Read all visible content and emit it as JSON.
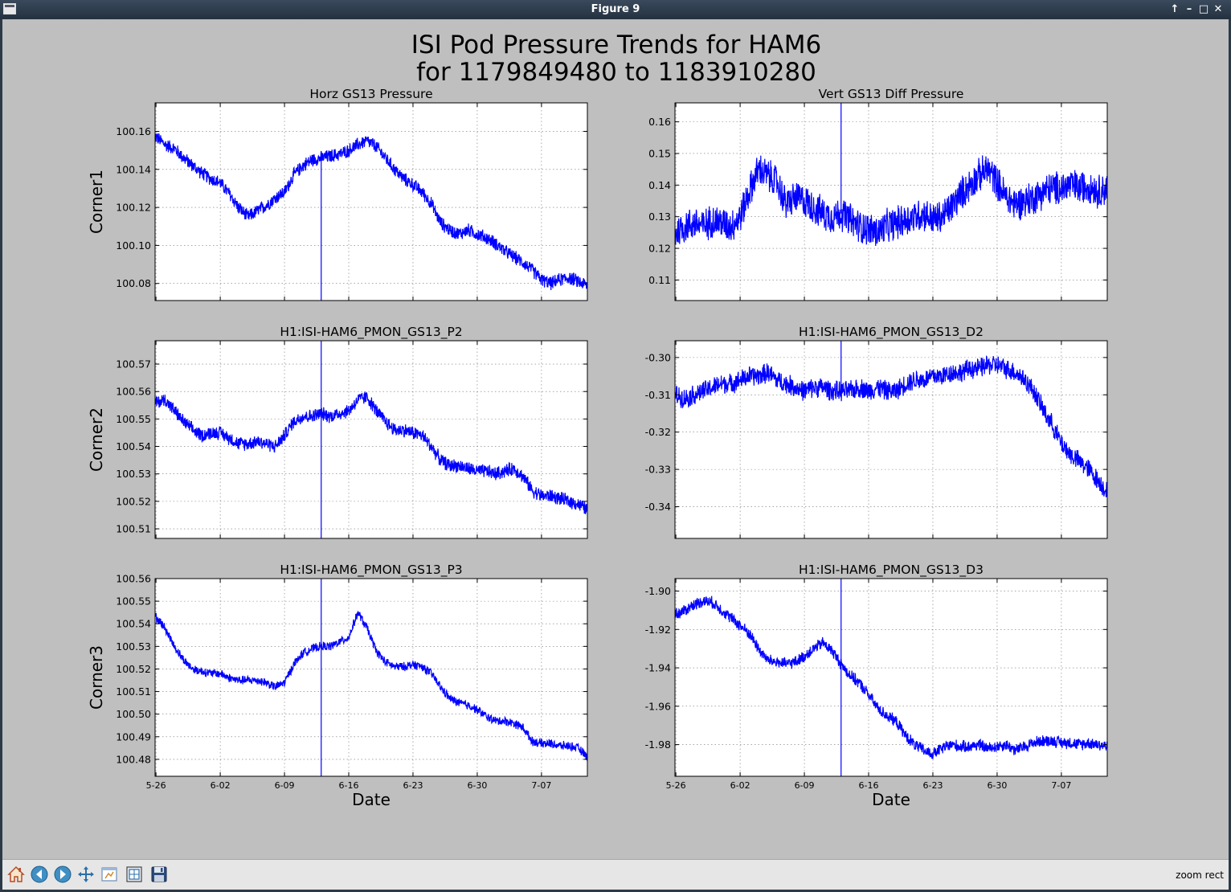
{
  "window": {
    "title": "Figure 9",
    "controls": [
      "↑",
      "–",
      "□",
      "✕"
    ]
  },
  "toolbar": {
    "tools": [
      {
        "name": "home-icon"
      },
      {
        "name": "back-arrow-icon"
      },
      {
        "name": "forward-arrow-icon"
      },
      {
        "name": "pan-icon"
      },
      {
        "name": "zoom-icon"
      },
      {
        "name": "subplots-icon"
      },
      {
        "name": "save-icon"
      }
    ],
    "status": "zoom rect"
  },
  "chart_data": {
    "type": "line",
    "title": "ISI Pod Pressure Trends for HAM6\nfor 1179849480 to 1183910280",
    "line_color": "#0000ff",
    "grid": true,
    "x_tick_labels": [
      "5-26",
      "6-02",
      "6-09",
      "6-16",
      "6-23",
      "6-30",
      "7-07"
    ],
    "x_tick_days": [
      0,
      7,
      14,
      21,
      28,
      35,
      42
    ],
    "x_range_days": [
      -0.1,
      47.0
    ],
    "x_label": "Date",
    "panels": [
      {
        "id": "p1",
        "title": "Horz GS13 Pressure",
        "ylabel": "Corner1",
        "ylim": [
          100.071,
          100.175
        ],
        "yticks": [
          100.08,
          100.1,
          100.12,
          100.14,
          100.16
        ],
        "ytick_labels": [
          "100.08",
          "100.10",
          "100.12",
          "100.14",
          "100.16"
        ],
        "noise": 0.004,
        "spike_day": 18.0,
        "spike_to": "bottom",
        "x": [
          0,
          1,
          2,
          3,
          4,
          5,
          6,
          7,
          8,
          9,
          10,
          11,
          12,
          13,
          14,
          15,
          16,
          17,
          18,
          19,
          20,
          21,
          22,
          23,
          24,
          25,
          26,
          27,
          28,
          29,
          30,
          31,
          32,
          33,
          34,
          35,
          36,
          37,
          38,
          39,
          40,
          41,
          42,
          43,
          44,
          45,
          46,
          47
        ],
        "y": [
          100.157,
          100.153,
          100.151,
          100.146,
          100.142,
          100.138,
          100.135,
          100.133,
          100.127,
          100.12,
          100.115,
          100.118,
          100.121,
          100.125,
          100.128,
          100.137,
          100.142,
          100.145,
          100.146,
          100.147,
          100.148,
          100.15,
          100.153,
          100.155,
          100.152,
          100.146,
          100.14,
          100.135,
          100.132,
          100.128,
          100.122,
          100.112,
          100.108,
          100.106,
          100.108,
          100.106,
          100.104,
          100.101,
          100.097,
          100.094,
          100.091,
          100.087,
          100.082,
          100.08,
          100.082,
          100.083,
          100.081,
          100.079
        ]
      },
      {
        "id": "p2",
        "title": "Vert GS13 Diff Pressure",
        "ylabel": "",
        "ylim": [
          0.1035,
          0.166
        ],
        "yticks": [
          0.11,
          0.12,
          0.13,
          0.14,
          0.15,
          0.16
        ],
        "ytick_labels": [
          "0.11",
          "0.12",
          "0.13",
          "0.14",
          "0.15",
          "0.16"
        ],
        "noise": 0.006,
        "spike_day": 18.0,
        "spike_to": "top",
        "x": [
          0,
          1,
          2,
          3,
          4,
          5,
          6,
          7,
          8,
          9,
          10,
          11,
          12,
          13,
          14,
          15,
          16,
          17,
          18,
          19,
          20,
          21,
          22,
          23,
          24,
          25,
          26,
          27,
          28,
          29,
          30,
          31,
          32,
          33,
          34,
          35,
          36,
          37,
          38,
          39,
          40,
          41,
          42,
          43,
          44,
          45,
          46,
          47
        ],
        "y": [
          0.125,
          0.127,
          0.128,
          0.127,
          0.129,
          0.128,
          0.127,
          0.13,
          0.138,
          0.145,
          0.143,
          0.141,
          0.134,
          0.136,
          0.135,
          0.133,
          0.131,
          0.13,
          0.131,
          0.129,
          0.127,
          0.126,
          0.125,
          0.127,
          0.128,
          0.129,
          0.13,
          0.131,
          0.129,
          0.13,
          0.133,
          0.137,
          0.14,
          0.143,
          0.145,
          0.141,
          0.136,
          0.134,
          0.135,
          0.136,
          0.138,
          0.139,
          0.139,
          0.14,
          0.139,
          0.14,
          0.138,
          0.139
        ]
      },
      {
        "id": "p3",
        "title": "H1:ISI-HAM6_PMON_GS13_P2",
        "ylabel": "Corner2",
        "ylim": [
          100.5065,
          100.5785
        ],
        "yticks": [
          100.51,
          100.52,
          100.53,
          100.54,
          100.55,
          100.56,
          100.57
        ],
        "ytick_labels": [
          "100.51",
          "100.52",
          "100.53",
          "100.54",
          "100.55",
          "100.56",
          "100.57"
        ],
        "noise": 0.0028,
        "spike_day": 18.0,
        "spike_to": "both",
        "x": [
          0,
          1,
          2,
          3,
          4,
          5,
          6,
          7,
          8,
          9,
          10,
          11,
          12,
          13,
          14,
          15,
          16,
          17,
          18,
          19,
          20,
          21,
          22,
          23,
          24,
          25,
          26,
          27,
          28,
          29,
          30,
          31,
          32,
          33,
          34,
          35,
          36,
          37,
          38,
          39,
          40,
          41,
          42,
          43,
          44,
          45,
          46,
          47
        ],
        "y": [
          100.556,
          100.557,
          100.553,
          100.549,
          100.546,
          100.544,
          100.545,
          100.545,
          100.543,
          100.541,
          100.541,
          100.542,
          100.541,
          100.54,
          100.544,
          100.549,
          100.551,
          100.551,
          100.552,
          100.551,
          100.552,
          100.553,
          100.557,
          100.558,
          100.553,
          100.549,
          100.546,
          100.546,
          100.545,
          100.544,
          100.54,
          100.535,
          100.533,
          100.533,
          100.532,
          100.531,
          100.531,
          100.53,
          100.531,
          100.532,
          100.529,
          100.524,
          100.522,
          100.522,
          100.521,
          100.52,
          100.519,
          100.517
        ]
      },
      {
        "id": "p4",
        "title": "H1:ISI-HAM6_PMON_GS13_D2",
        "ylabel": "",
        "ylim": [
          -0.3485,
          -0.2955
        ],
        "yticks": [
          -0.34,
          -0.33,
          -0.32,
          -0.31,
          -0.3
        ],
        "ytick_labels": [
          "-0.34",
          "-0.33",
          "-0.32",
          "-0.31",
          "-0.30"
        ],
        "noise": 0.003,
        "spike_day": 18.0,
        "spike_to": "top",
        "x": [
          0,
          1,
          2,
          3,
          4,
          5,
          6,
          7,
          8,
          9,
          10,
          11,
          12,
          13,
          14,
          15,
          16,
          17,
          18,
          19,
          20,
          21,
          22,
          23,
          24,
          25,
          26,
          27,
          28,
          29,
          30,
          31,
          32,
          33,
          34,
          35,
          36,
          37,
          38,
          39,
          40,
          41,
          42,
          43,
          44,
          45,
          46,
          47
        ],
        "y": [
          -0.31,
          -0.311,
          -0.31,
          -0.309,
          -0.308,
          -0.307,
          -0.307,
          -0.306,
          -0.305,
          -0.305,
          -0.304,
          -0.306,
          -0.307,
          -0.308,
          -0.309,
          -0.308,
          -0.308,
          -0.309,
          -0.309,
          -0.309,
          -0.308,
          -0.309,
          -0.308,
          -0.309,
          -0.309,
          -0.307,
          -0.306,
          -0.306,
          -0.305,
          -0.305,
          -0.304,
          -0.304,
          -0.303,
          -0.303,
          -0.302,
          -0.302,
          -0.303,
          -0.304,
          -0.306,
          -0.309,
          -0.314,
          -0.318,
          -0.323,
          -0.326,
          -0.328,
          -0.33,
          -0.333,
          -0.336
        ]
      },
      {
        "id": "p5",
        "title": "H1:ISI-HAM6_PMON_GS13_P3",
        "ylabel": "Corner3",
        "ylim": [
          100.4725,
          100.56
        ],
        "yticks": [
          100.48,
          100.49,
          100.5,
          100.51,
          100.52,
          100.53,
          100.54,
          100.55,
          100.56
        ],
        "ytick_labels": [
          "100.48",
          "100.49",
          "100.50",
          "100.51",
          "100.52",
          "100.53",
          "100.54",
          "100.55",
          "100.56"
        ],
        "noise": 0.0022,
        "spike_day": 18.0,
        "spike_to": "both",
        "x": [
          0,
          1,
          2,
          3,
          4,
          5,
          6,
          7,
          8,
          9,
          10,
          11,
          12,
          13,
          14,
          15,
          16,
          17,
          18,
          19,
          20,
          21,
          22,
          23,
          24,
          25,
          26,
          27,
          28,
          29,
          30,
          31,
          32,
          33,
          34,
          35,
          36,
          37,
          38,
          39,
          40,
          41,
          42,
          43,
          44,
          45,
          46,
          47
        ],
        "y": [
          100.543,
          100.538,
          100.53,
          100.524,
          100.52,
          100.519,
          100.518,
          100.518,
          100.516,
          100.515,
          100.515,
          100.515,
          100.514,
          100.512,
          100.514,
          100.522,
          100.527,
          100.529,
          100.53,
          100.53,
          100.532,
          100.534,
          100.545,
          100.538,
          100.528,
          100.523,
          100.521,
          100.521,
          100.522,
          100.521,
          100.518,
          100.512,
          100.507,
          100.505,
          100.504,
          100.502,
          100.499,
          100.497,
          100.497,
          100.496,
          100.494,
          100.488,
          100.487,
          100.487,
          100.486,
          100.486,
          100.485,
          100.481
        ]
      },
      {
        "id": "p6",
        "title": "H1:ISI-HAM6_PMON_GS13_D3",
        "ylabel": "",
        "ylim": [
          -1.9965,
          -1.8935
        ],
        "yticks": [
          -1.98,
          -1.96,
          -1.94,
          -1.92,
          -1.9
        ],
        "ytick_labels": [
          "-1.98",
          "-1.96",
          "-1.94",
          "-1.92",
          "-1.90"
        ],
        "noise": 0.0035,
        "spike_day": 18.0,
        "spike_to": "both",
        "x": [
          0,
          1,
          2,
          3,
          4,
          5,
          6,
          7,
          8,
          9,
          10,
          11,
          12,
          13,
          14,
          15,
          16,
          17,
          18,
          19,
          20,
          21,
          22,
          23,
          24,
          25,
          26,
          27,
          28,
          29,
          30,
          31,
          32,
          33,
          34,
          35,
          36,
          37,
          38,
          39,
          40,
          41,
          42,
          43,
          44,
          45,
          46,
          47
        ],
        "y": [
          -1.912,
          -1.91,
          -1.907,
          -1.905,
          -1.906,
          -1.91,
          -1.914,
          -1.918,
          -1.922,
          -1.93,
          -1.936,
          -1.937,
          -1.938,
          -1.937,
          -1.934,
          -1.93,
          -1.927,
          -1.931,
          -1.938,
          -1.944,
          -1.948,
          -1.954,
          -1.961,
          -1.965,
          -1.968,
          -1.975,
          -1.98,
          -1.983,
          -1.985,
          -1.982,
          -1.98,
          -1.981,
          -1.981,
          -1.98,
          -1.982,
          -1.981,
          -1.98,
          -1.983,
          -1.981,
          -1.979,
          -1.978,
          -1.978,
          -1.979,
          -1.979,
          -1.98,
          -1.979,
          -1.98,
          -1.981
        ]
      }
    ]
  }
}
